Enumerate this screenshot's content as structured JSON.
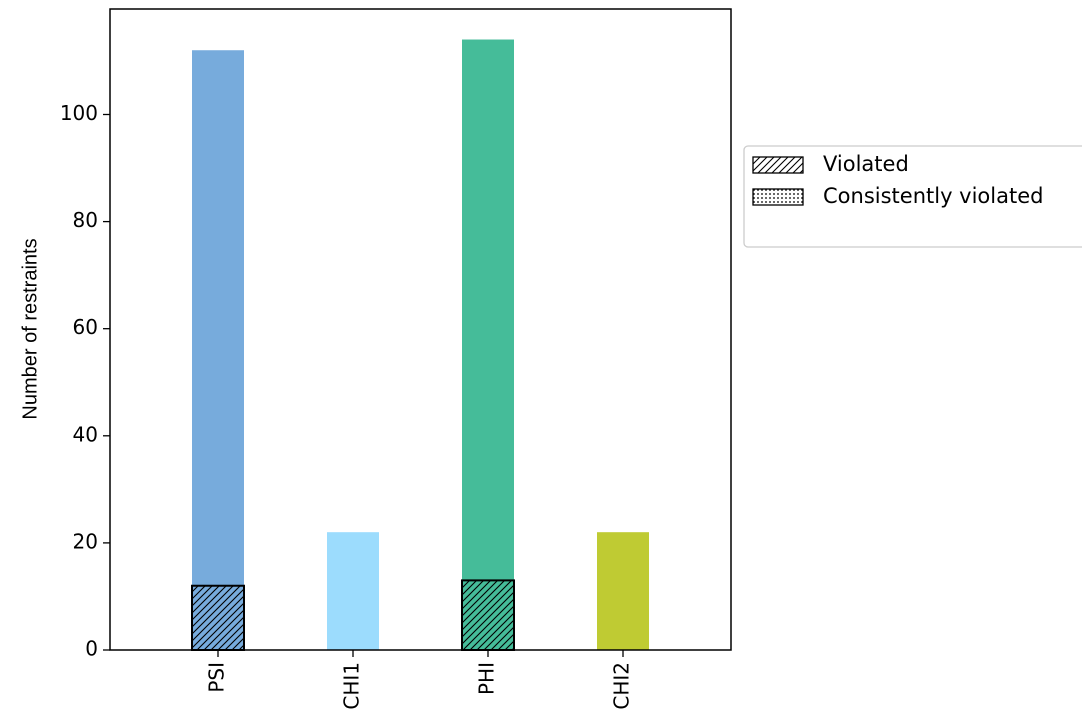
{
  "chart_data": {
    "type": "bar",
    "title": "",
    "xlabel": "",
    "ylabel": "Number of restraints",
    "categories": [
      "PSI",
      "CHI1",
      "PHI",
      "CHI2"
    ],
    "series": [
      {
        "values": [
          112,
          22,
          114,
          22
        ],
        "colors": [
          "#77abdc",
          "#9cdcfd",
          "#45bc99",
          "#bfcb33"
        ]
      },
      {
        "name": "Violated",
        "values": [
          12,
          0,
          13,
          0
        ],
        "hatch": "diagonal"
      },
      {
        "name": "Consistently violated",
        "values": [
          0,
          0,
          0,
          0
        ],
        "hatch": "dots"
      }
    ],
    "ylim": [
      0,
      119.7
    ],
    "yticks": [
      0,
      20,
      40,
      60,
      80,
      100
    ],
    "grid": false,
    "legend_placement": "right-outside"
  }
}
